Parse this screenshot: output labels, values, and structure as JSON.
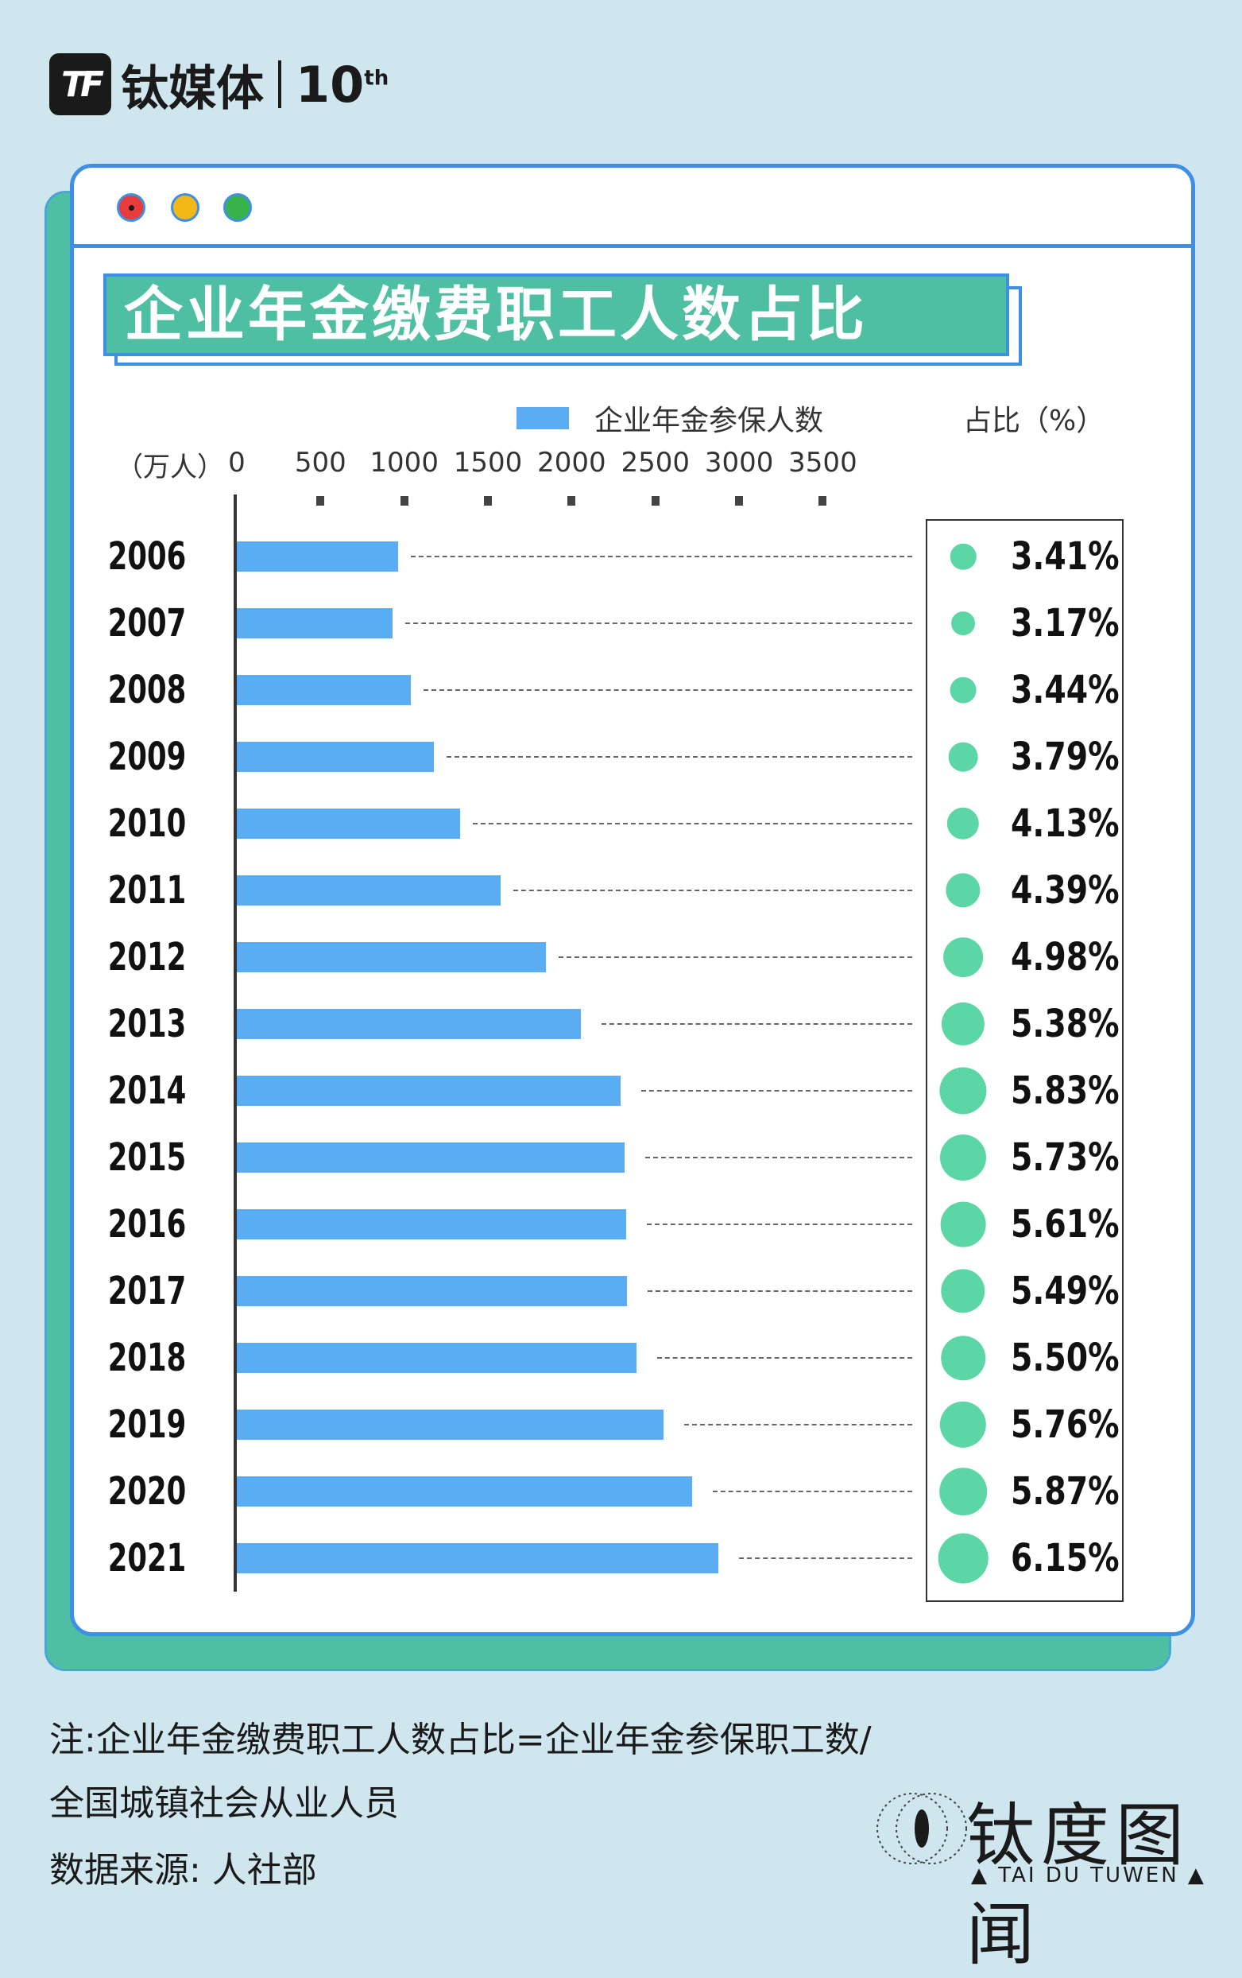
{
  "brand": {
    "logo_text": "TF",
    "name": "钛媒体",
    "anniversary": "10",
    "anniversary_suffix": "th"
  },
  "title": "企业年金缴费职工人数占比",
  "legend": {
    "series_label": "企业年金参保人数",
    "pct_label": "占比（%）"
  },
  "axis": {
    "unit": "（万人）",
    "ticks": [
      "0",
      "500",
      "1000",
      "1500",
      "2000",
      "2500",
      "3000",
      "3500"
    ]
  },
  "colors": {
    "bar": "#5aacf3",
    "dot": "#5cd6a5",
    "title_bg": "#4fbfa4",
    "frame": "#3f8fe6"
  },
  "chart_data": {
    "type": "bar",
    "orientation": "horizontal",
    "title": "企业年金缴费职工人数占比",
    "xlabel": "（万人）",
    "xlim": [
      0,
      3500
    ],
    "categories": [
      "2006",
      "2007",
      "2008",
      "2009",
      "2010",
      "2011",
      "2012",
      "2013",
      "2014",
      "2015",
      "2016",
      "2017",
      "2018",
      "2019",
      "2020",
      "2021"
    ],
    "series": [
      {
        "name": "企业年金参保人数",
        "values": [
          964,
          929,
          1038,
          1179,
          1335,
          1577,
          1847,
          2056,
          2293,
          2316,
          2325,
          2331,
          2388,
          2548,
          2718,
          2875
        ]
      },
      {
        "name": "占比（%）",
        "values": [
          3.41,
          3.17,
          3.44,
          3.79,
          4.13,
          4.39,
          4.98,
          5.38,
          5.83,
          5.73,
          5.61,
          5.49,
          5.5,
          5.76,
          5.87,
          6.15
        ]
      }
    ],
    "pct_labels": [
      "3.41%",
      "3.17%",
      "3.44%",
      "3.79%",
      "4.13%",
      "4.39%",
      "4.98%",
      "5.38%",
      "5.83%",
      "5.73%",
      "5.61%",
      "5.49%",
      "5.50%",
      "5.76%",
      "5.87%",
      "6.15%"
    ],
    "legend_position": "top"
  },
  "notes": {
    "line1": "注:企业年金缴费职工人数占比=企业年金参保职工数/",
    "line2": "全国城镇社会从业人员",
    "line3": "数据来源: 人社部"
  },
  "footer": {
    "name": "钛度图闻",
    "sub": "▲ TAI DU TUWEN ▲"
  }
}
